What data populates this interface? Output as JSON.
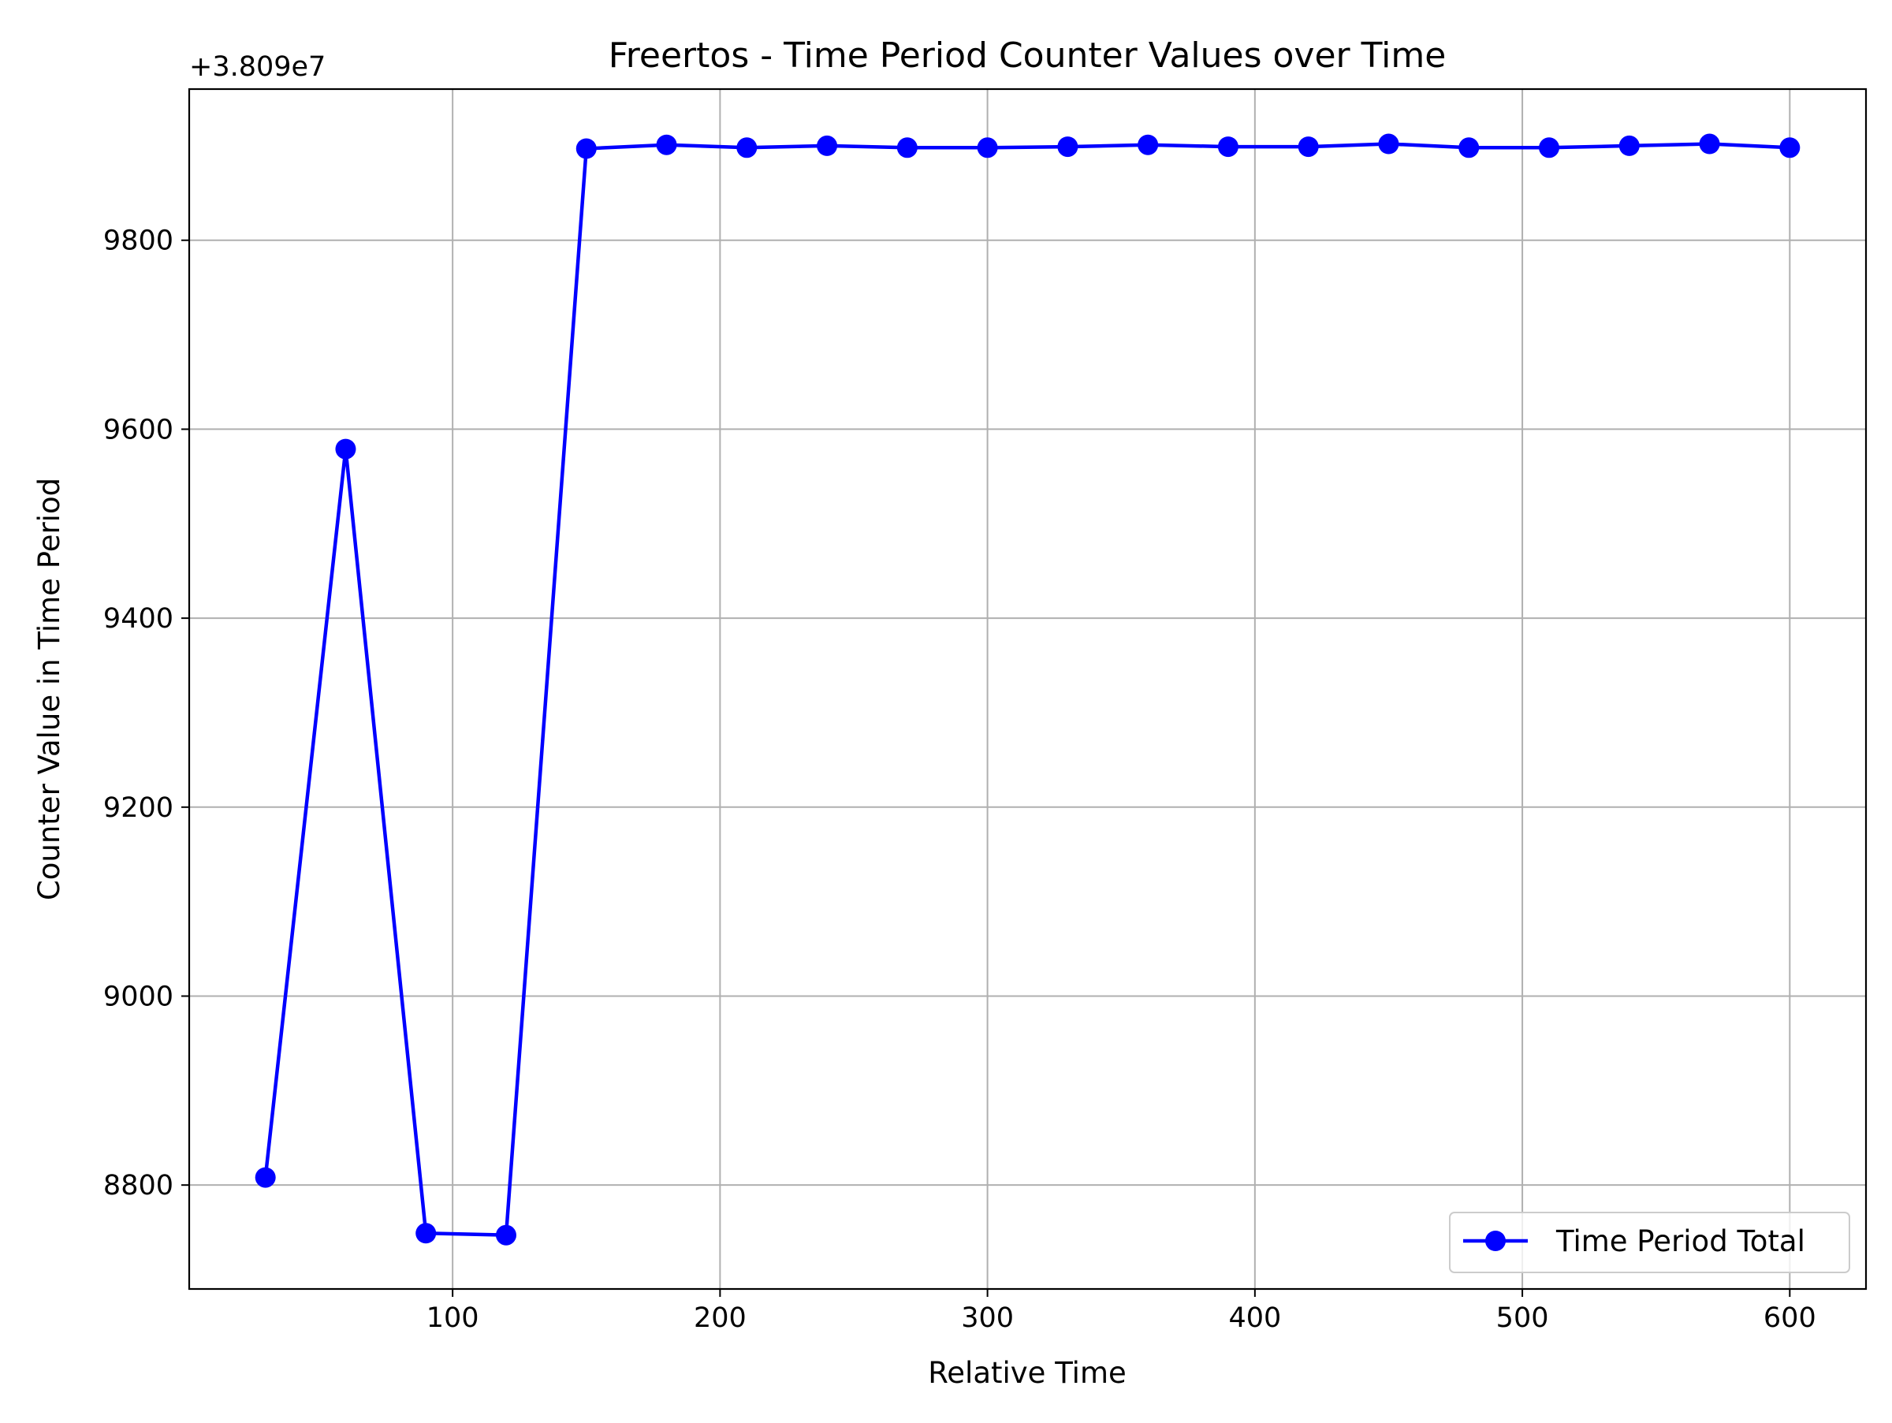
{
  "chart_data": {
    "type": "line",
    "title": "Freertos - Time Period Counter Values over Time",
    "xlabel": "Relative Time",
    "ylabel": "Counter Value in Time Period",
    "y_offset_label": "+3.809e7",
    "xlim": [
      1.5,
      628.5
    ],
    "ylim": [
      8690,
      9960
    ],
    "x_ticks": [
      100,
      200,
      300,
      400,
      500,
      600
    ],
    "x_tick_labels": [
      "100",
      "200",
      "300",
      "400",
      "500",
      "600"
    ],
    "y_ticks": [
      8800,
      9000,
      9200,
      9400,
      9600,
      9800
    ],
    "y_tick_labels": [
      "8800",
      "9000",
      "9200",
      "9400",
      "9600",
      "9800"
    ],
    "grid": true,
    "legend_position": "lower-right",
    "series": [
      {
        "name": "Time Period Total",
        "color": "#0000ff",
        "marker": "circle",
        "x": [
          30,
          60,
          90,
          120,
          150,
          180,
          210,
          240,
          270,
          300,
          330,
          360,
          390,
          420,
          450,
          480,
          510,
          540,
          570,
          600
        ],
        "y": [
          8808,
          9579,
          8749,
          8747,
          9897,
          9901,
          9898,
          9900,
          9898,
          9898,
          9899,
          9901,
          9899,
          9899,
          9902,
          9898,
          9898,
          9900,
          9902,
          9898
        ]
      }
    ]
  }
}
